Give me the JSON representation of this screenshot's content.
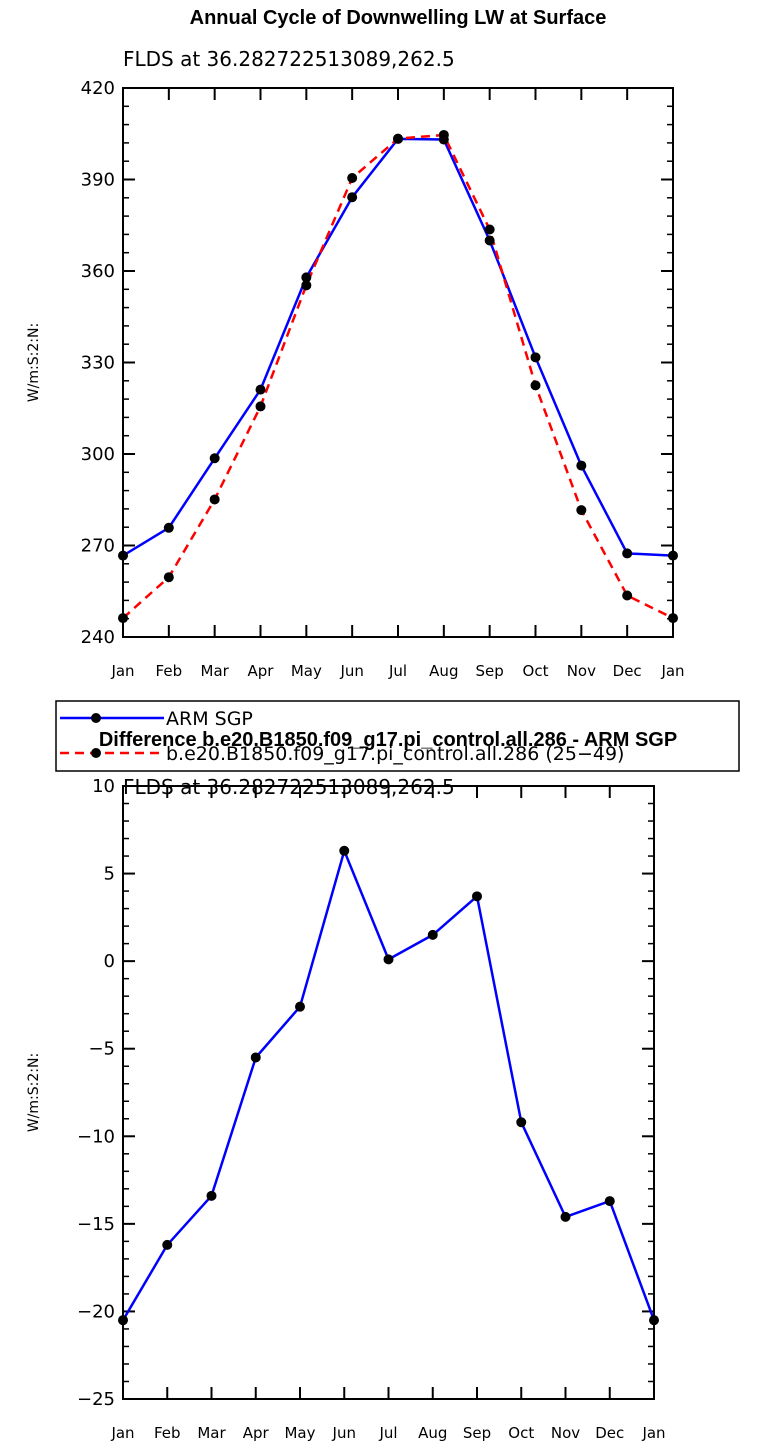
{
  "chart_data": [
    {
      "type": "line",
      "title": "Annual Cycle of Downwelling LW at Surface",
      "subtitle": "FLDS at 36.282722513089,262.5",
      "ylabel": "W/m:S:2:N:",
      "xlabel": "",
      "categories": [
        "Jan",
        "Feb",
        "Mar",
        "Apr",
        "May",
        "Jun",
        "Jul",
        "Aug",
        "Sep",
        "Oct",
        "Nov",
        "Dec",
        "Jan"
      ],
      "ylim": [
        240,
        420
      ],
      "yticks": [
        240,
        270,
        300,
        330,
        360,
        390,
        420
      ],
      "grid": false,
      "legend_position": "below",
      "series": [
        {
          "name": "ARM SGP",
          "color": "#0000ff",
          "dash": "solid",
          "values": [
            266.7,
            275.8,
            298.6,
            321.1,
            357.9,
            384.2,
            403.3,
            403.1,
            370.0,
            331.7,
            296.2,
            267.4,
            266.7
          ]
        },
        {
          "name": "b.e20.B1850.f09_g17.pi_control.all.286 (25−49)",
          "color": "#ff0000",
          "dash": "dashed",
          "values": [
            246.2,
            259.6,
            285.1,
            315.6,
            355.3,
            390.5,
            403.4,
            404.6,
            373.6,
            322.5,
            281.6,
            253.6,
            246.2
          ]
        }
      ]
    },
    {
      "type": "line",
      "title": "Difference b.e20.B1850.f09_g17.pi_control.all.286 - ARM SGP",
      "subtitle": "FLDS at 36.282722513089,262.5",
      "ylabel": "W/m:S:2:N:",
      "xlabel": "",
      "categories": [
        "Jan",
        "Feb",
        "Mar",
        "Apr",
        "May",
        "Jun",
        "Jul",
        "Aug",
        "Sep",
        "Oct",
        "Nov",
        "Dec",
        "Jan"
      ],
      "ylim": [
        -25,
        10
      ],
      "yticks": [
        -25,
        -20,
        -15,
        -10,
        -5,
        0,
        5,
        10
      ],
      "ytick_labels": [
        "−25",
        "−20",
        "−15",
        "−10",
        "−5",
        "0",
        "5",
        "10"
      ],
      "grid": false,
      "series": [
        {
          "color": "#0000ff",
          "dash": "solid",
          "values": [
            -20.5,
            -16.2,
            -13.4,
            -5.5,
            -2.6,
            6.3,
            0.1,
            1.5,
            3.7,
            -9.2,
            -14.6,
            -13.7,
            -20.5
          ]
        }
      ]
    }
  ]
}
